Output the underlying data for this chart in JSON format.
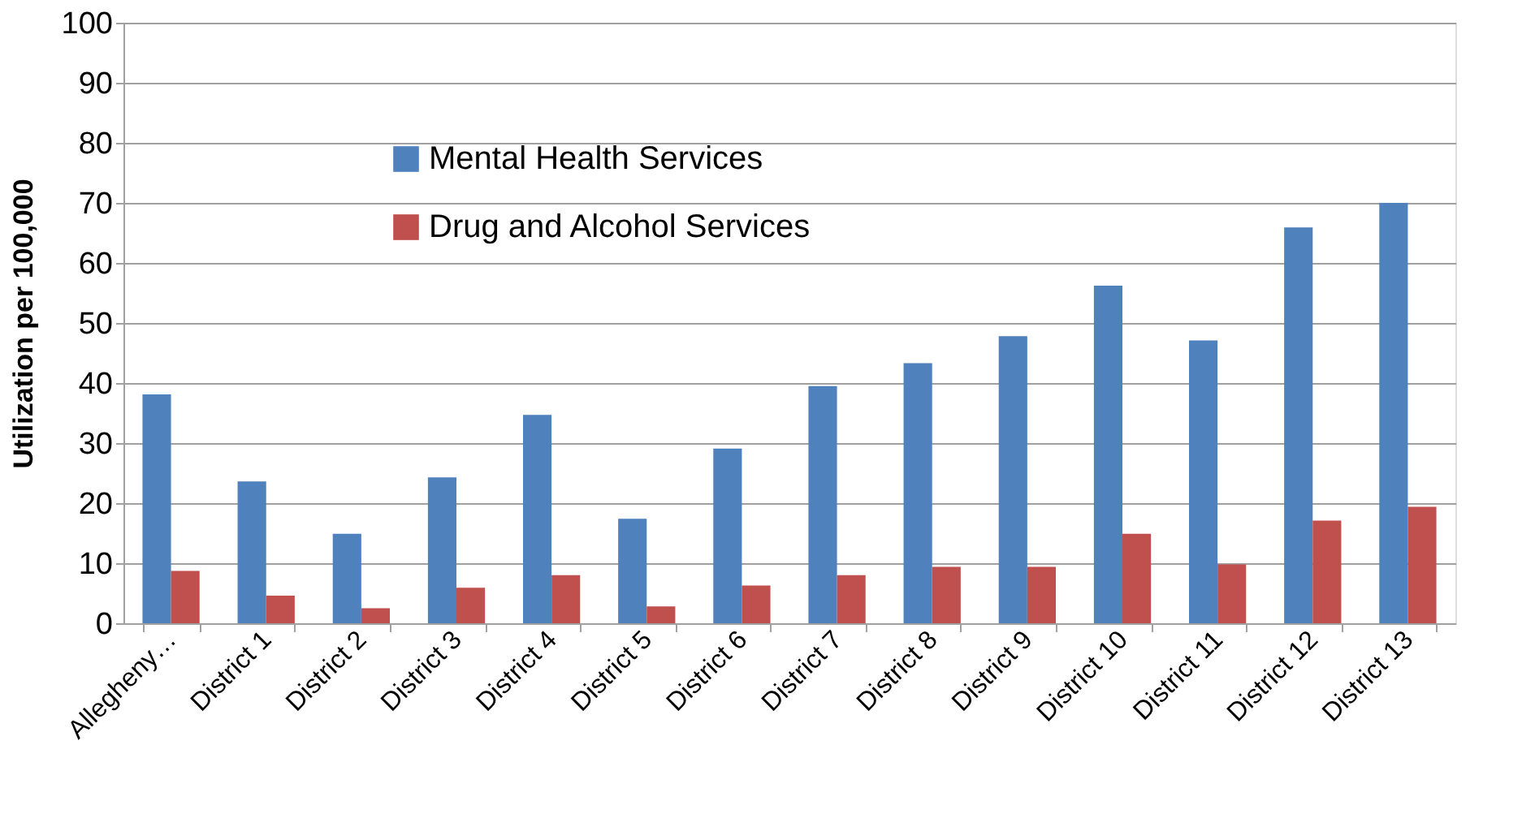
{
  "chart_data": {
    "type": "bar",
    "ylabel": "Utilization per 100,000",
    "categories": [
      "Allegheny…",
      "District 1",
      "District 2",
      "District 3",
      "District 4",
      "District 5",
      "District 6",
      "District 7",
      "District 8",
      "District 9",
      "District 10",
      "District 11",
      "District 12",
      "District 13"
    ],
    "series": [
      {
        "name": "Mental Health Services",
        "color": "#4f81bd",
        "values": [
          38.1,
          23.6,
          14.9,
          24.3,
          34.7,
          17.4,
          29.1,
          39.5,
          43.3,
          47.8,
          56.2,
          47.1,
          65.9,
          70.0
        ]
      },
      {
        "name": "Drug and Alcohol Services",
        "color": "#c0504d",
        "values": [
          8.7,
          4.6,
          2.5,
          5.9,
          8.0,
          2.8,
          6.3,
          8.0,
          9.4,
          9.4,
          14.9,
          9.8,
          17.1,
          19.4
        ]
      }
    ],
    "ylim": [
      0,
      100
    ],
    "yticks": [
      0,
      10,
      20,
      30,
      40,
      50,
      60,
      70,
      80,
      90,
      100
    ],
    "grid": "y",
    "legend": "top left"
  }
}
